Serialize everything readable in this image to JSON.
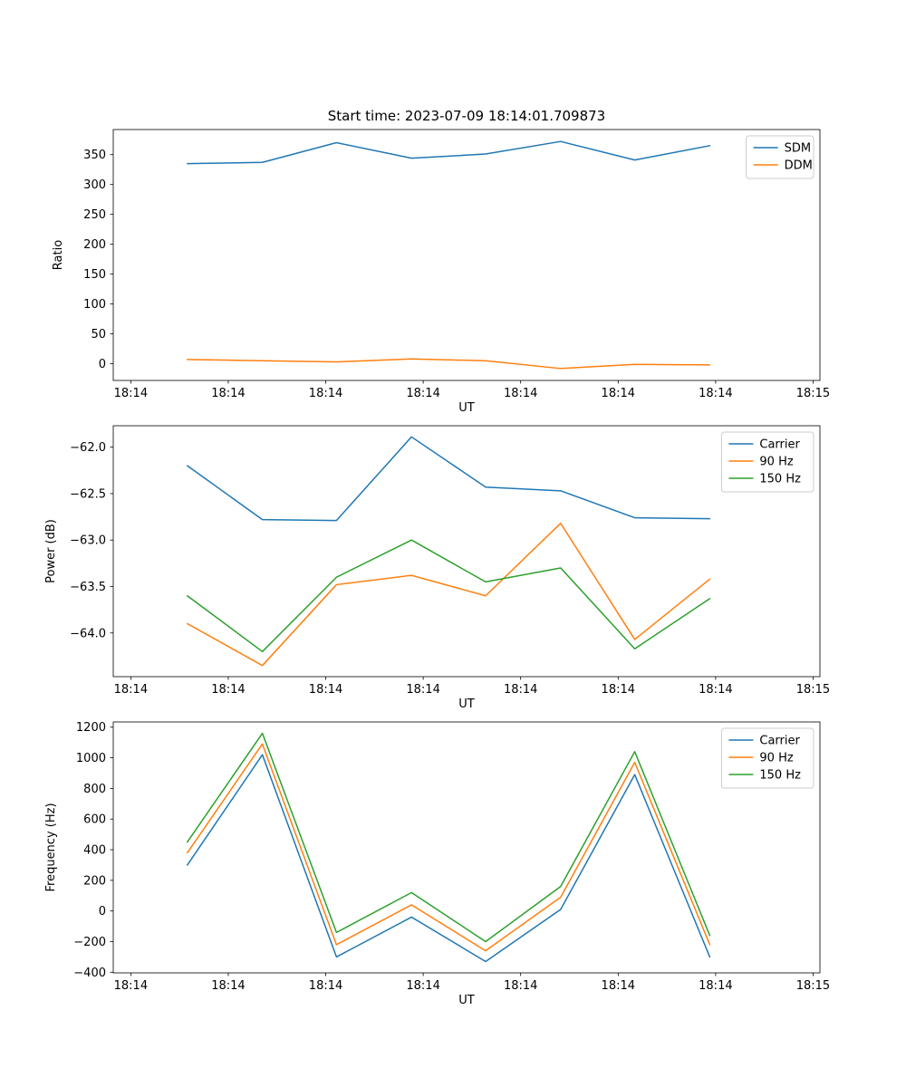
{
  "figure": {
    "background": "#ffffff",
    "text_color": "#000000",
    "spine_color": "#000000",
    "legend_border_color": "#cccccc"
  },
  "chart_data": [
    {
      "type": "line",
      "title": "Start time: 2023-07-09 18:14:01.709873",
      "xlabel": "UT",
      "ylabel": "Ratio",
      "grid": false,
      "legend_position": "top-right",
      "x": [
        5.8,
        13.5,
        21.1,
        28.8,
        36.4,
        44.1,
        51.7,
        59.4
      ],
      "xlim": [
        -1.8,
        70.7
      ],
      "ylim": [
        -28,
        392
      ],
      "x_tick_values": [
        0,
        10,
        20,
        30,
        40,
        50,
        60,
        70
      ],
      "x_tick_labels": [
        "18:14",
        "18:14",
        "18:14",
        "18:14",
        "18:14",
        "18:14",
        "18:14",
        "18:15"
      ],
      "y_tick_values": [
        0,
        50,
        100,
        150,
        200,
        250,
        300,
        350
      ],
      "y_tick_labels": [
        "0",
        "50",
        "100",
        "150",
        "200",
        "250",
        "300",
        "350"
      ],
      "series": [
        {
          "name": "SDM",
          "color": "#1f77b4",
          "values": [
            335,
            337,
            370,
            344,
            351,
            372,
            341,
            365
          ]
        },
        {
          "name": "DDM",
          "color": "#ff7f0e",
          "values": [
            7,
            5,
            3,
            8,
            5,
            -8,
            -1,
            -2
          ]
        }
      ]
    },
    {
      "type": "line",
      "title": "",
      "xlabel": "UT",
      "ylabel": "Power (dB)",
      "grid": false,
      "legend_position": "top-right",
      "x": [
        5.8,
        13.5,
        21.1,
        28.8,
        36.4,
        44.1,
        51.7,
        59.4
      ],
      "xlim": [
        -1.8,
        70.7
      ],
      "ylim": [
        -64.47,
        -61.77
      ],
      "x_tick_values": [
        0,
        10,
        20,
        30,
        40,
        50,
        60,
        70
      ],
      "x_tick_labels": [
        "18:14",
        "18:14",
        "18:14",
        "18:14",
        "18:14",
        "18:14",
        "18:14",
        "18:15"
      ],
      "y_tick_values": [
        -64.0,
        -63.5,
        -63.0,
        -62.5,
        -62.0
      ],
      "y_tick_labels": [
        "−64.0",
        "−63.5",
        "−63.0",
        "−62.5",
        "−62.0"
      ],
      "series": [
        {
          "name": "Carrier",
          "color": "#1f77b4",
          "values": [
            -62.2,
            -62.78,
            -62.79,
            -61.89,
            -62.43,
            -62.47,
            -62.76,
            -62.77
          ]
        },
        {
          "name": "90 Hz",
          "color": "#ff7f0e",
          "values": [
            -63.9,
            -64.35,
            -63.48,
            -63.38,
            -63.6,
            -62.82,
            -64.07,
            -63.42
          ]
        },
        {
          "name": "150 Hz",
          "color": "#2ca02c",
          "values": [
            -63.6,
            -64.2,
            -63.4,
            -63.0,
            -63.45,
            -63.3,
            -64.17,
            -63.63
          ]
        }
      ]
    },
    {
      "type": "line",
      "title": "",
      "xlabel": "UT",
      "ylabel": "Frequency (Hz)",
      "grid": false,
      "legend_position": "top-right",
      "x": [
        5.8,
        13.5,
        21.1,
        28.8,
        36.4,
        44.1,
        51.7,
        59.4
      ],
      "xlim": [
        -1.8,
        70.7
      ],
      "ylim": [
        -404,
        1234
      ],
      "x_tick_values": [
        0,
        10,
        20,
        30,
        40,
        50,
        60,
        70
      ],
      "x_tick_labels": [
        "18:14",
        "18:14",
        "18:14",
        "18:14",
        "18:14",
        "18:14",
        "18:14",
        "18:15"
      ],
      "y_tick_values": [
        -400,
        -200,
        0,
        200,
        400,
        600,
        800,
        1000,
        1200
      ],
      "y_tick_labels": [
        "−400",
        "−200",
        "0",
        "200",
        "400",
        "600",
        "800",
        "1000",
        "1200"
      ],
      "series": [
        {
          "name": "Carrier",
          "color": "#1f77b4",
          "values": [
            300,
            1020,
            -300,
            -40,
            -330,
            10,
            890,
            -300
          ]
        },
        {
          "name": "90 Hz",
          "color": "#ff7f0e",
          "values": [
            380,
            1090,
            -220,
            40,
            -260,
            90,
            970,
            -220
          ]
        },
        {
          "name": "150 Hz",
          "color": "#2ca02c",
          "values": [
            450,
            1160,
            -140,
            120,
            -200,
            160,
            1040,
            -160
          ]
        }
      ]
    }
  ]
}
